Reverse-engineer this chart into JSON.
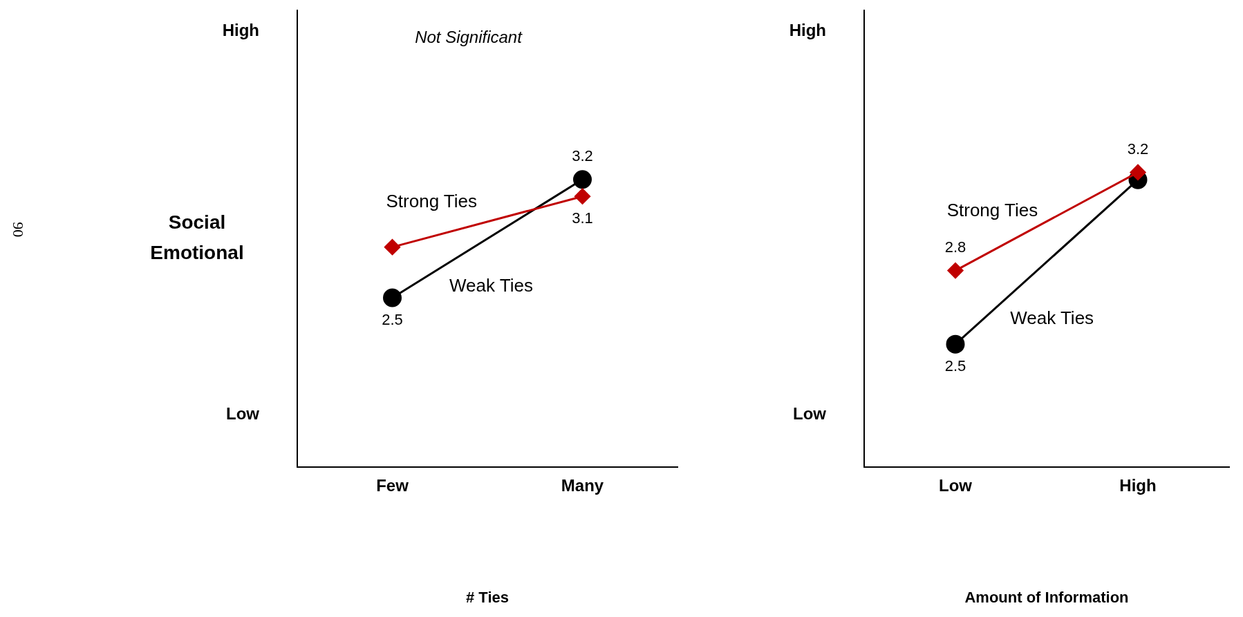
{
  "chart_data": [
    {
      "type": "line",
      "ylabel": "Social Emotional",
      "xlabel": "# Ties",
      "categories": [
        "Few",
        "Many"
      ],
      "ylim": [
        1.5,
        4.2
      ],
      "grid": false,
      "legend": false,
      "annotations": [
        "High",
        "Low",
        "Not Significant",
        "90"
      ],
      "series": [
        {
          "name": "Strong Ties",
          "color": "#c00000",
          "marker": "diamond",
          "values": [
            2.8,
            3.1
          ],
          "value_labels": [
            null,
            "3.1"
          ]
        },
        {
          "name": "Weak Ties",
          "color": "#000000",
          "marker": "circle",
          "values": [
            2.5,
            3.2
          ],
          "value_labels": [
            "2.5",
            "3.2"
          ]
        }
      ]
    },
    {
      "type": "line",
      "xlabel": "Amount of Information",
      "categories": [
        "Low",
        "High"
      ],
      "ylim": [
        2.0,
        3.86
      ],
      "grid": false,
      "legend": false,
      "annotations": [
        "High",
        "Low"
      ],
      "series": [
        {
          "name": "Strong Ties",
          "color": "#c00000",
          "marker": "diamond",
          "values": [
            2.8,
            3.2
          ],
          "value_labels": [
            "2.8",
            "3.2"
          ]
        },
        {
          "name": "Weak Ties",
          "color": "#000000",
          "marker": "circle",
          "values": [
            2.5,
            3.17
          ],
          "value_labels": [
            "2.5",
            null
          ]
        }
      ]
    }
  ]
}
